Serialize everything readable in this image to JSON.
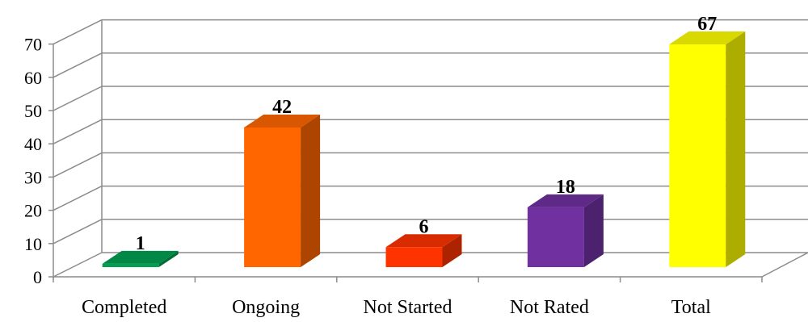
{
  "chart_data": {
    "type": "bar",
    "categories": [
      "Completed",
      "Ongoing",
      "Not Started",
      "Not Rated",
      "Total"
    ],
    "values": [
      1,
      42,
      6,
      18,
      67
    ],
    "data_labels": [
      "1",
      "42",
      "6",
      "18",
      "67"
    ],
    "colors": [
      "#00A050",
      "#FF6600",
      "#FF3300",
      "#7030A0",
      "#FFFF00"
    ],
    "title": "",
    "xlabel": "",
    "ylabel": "",
    "ylim": [
      0,
      70
    ],
    "yticks": [
      "0",
      "10",
      "20",
      "30",
      "40",
      "50",
      "60",
      "70"
    ],
    "grid": true,
    "legend": "none",
    "style": "3d-column"
  }
}
